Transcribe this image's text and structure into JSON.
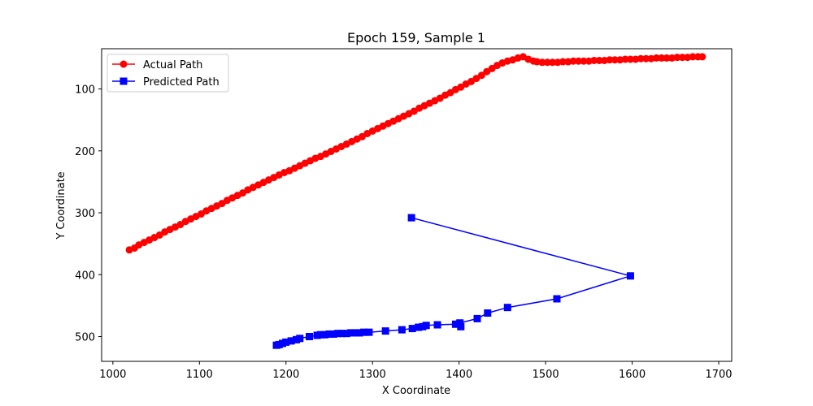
{
  "chart_data": {
    "type": "line",
    "title": "Epoch 159, Sample 1",
    "xlabel": "X Coordinate",
    "ylabel": "Y Coordinate",
    "xlim": [
      987,
      1715
    ],
    "ylim": [
      540,
      35
    ],
    "y_inverted": true,
    "grid": false,
    "legend_position": "top-left",
    "xticks": [
      1000,
      1100,
      1200,
      1300,
      1400,
      1500,
      1600,
      1700
    ],
    "yticks": [
      100,
      200,
      300,
      400,
      500
    ],
    "series": [
      {
        "name": "Actual Path",
        "color": "#ff0000",
        "marker": "circle",
        "x": [
          1019,
          1025,
          1030,
          1036,
          1042,
          1048,
          1054,
          1060,
          1066,
          1072,
          1078,
          1084,
          1090,
          1096,
          1102,
          1108,
          1114,
          1120,
          1126,
          1132,
          1138,
          1144,
          1150,
          1156,
          1162,
          1168,
          1174,
          1180,
          1186,
          1192,
          1198,
          1204,
          1210,
          1216,
          1222,
          1228,
          1234,
          1240,
          1246,
          1252,
          1258,
          1264,
          1270,
          1276,
          1282,
          1288,
          1294,
          1300,
          1306,
          1312,
          1318,
          1324,
          1330,
          1336,
          1342,
          1348,
          1354,
          1360,
          1366,
          1372,
          1378,
          1384,
          1390,
          1396,
          1402,
          1408,
          1414,
          1420,
          1426,
          1432,
          1438,
          1444,
          1450,
          1456,
          1462,
          1468,
          1474,
          1480,
          1486,
          1490,
          1496,
          1502,
          1508,
          1514,
          1520,
          1526,
          1532,
          1538,
          1544,
          1550,
          1556,
          1562,
          1568,
          1574,
          1580,
          1586,
          1592,
          1598,
          1604,
          1610,
          1616,
          1622,
          1628,
          1634,
          1640,
          1646,
          1652,
          1658,
          1664,
          1670,
          1676,
          1681
        ],
        "y": [
          360,
          357,
          352,
          348,
          344,
          340,
          336,
          331,
          327,
          323,
          319,
          314,
          310,
          306,
          302,
          297,
          293,
          289,
          285,
          280,
          276,
          272,
          268,
          263,
          259,
          255,
          251,
          247,
          243,
          239,
          235,
          232,
          228,
          224,
          220,
          216,
          212,
          209,
          205,
          201,
          197,
          193,
          189,
          185,
          181,
          177,
          172,
          168,
          164,
          160,
          156,
          152,
          148,
          144,
          140,
          136,
          131,
          127,
          123,
          119,
          115,
          110,
          106,
          101,
          97,
          92,
          88,
          83,
          78,
          72,
          67,
          62,
          58,
          55,
          53,
          50,
          48,
          52,
          55,
          56,
          57,
          57,
          57,
          57,
          56,
          56,
          55,
          55,
          55,
          55,
          54,
          54,
          54,
          53,
          53,
          53,
          52,
          52,
          52,
          51,
          51,
          51,
          50,
          50,
          50,
          50,
          49,
          49,
          49,
          48,
          48,
          48
        ]
      },
      {
        "name": "Predicted Path",
        "color": "#0000ff",
        "marker": "square",
        "x": [
          1345,
          1598,
          1513,
          1456,
          1433,
          1421,
          1401,
          1402,
          1396,
          1375,
          1362,
          1358,
          1353,
          1346,
          1334,
          1315,
          1296,
          1290,
          1285,
          1280,
          1275,
          1270,
          1265,
          1260,
          1255,
          1250,
          1245,
          1240,
          1236,
          1227,
          1216,
          1212,
          1206,
          1200,
          1196,
          1192,
          1189
        ],
        "y": [
          308,
          402,
          439,
          453,
          462,
          471,
          478,
          484,
          480,
          481,
          482,
          484,
          485,
          487,
          489,
          491,
          493,
          493,
          494,
          494,
          494,
          495,
          495,
          495,
          496,
          496,
          497,
          497,
          498,
          500,
          503,
          505,
          507,
          509,
          511,
          513,
          514
        ]
      }
    ]
  }
}
